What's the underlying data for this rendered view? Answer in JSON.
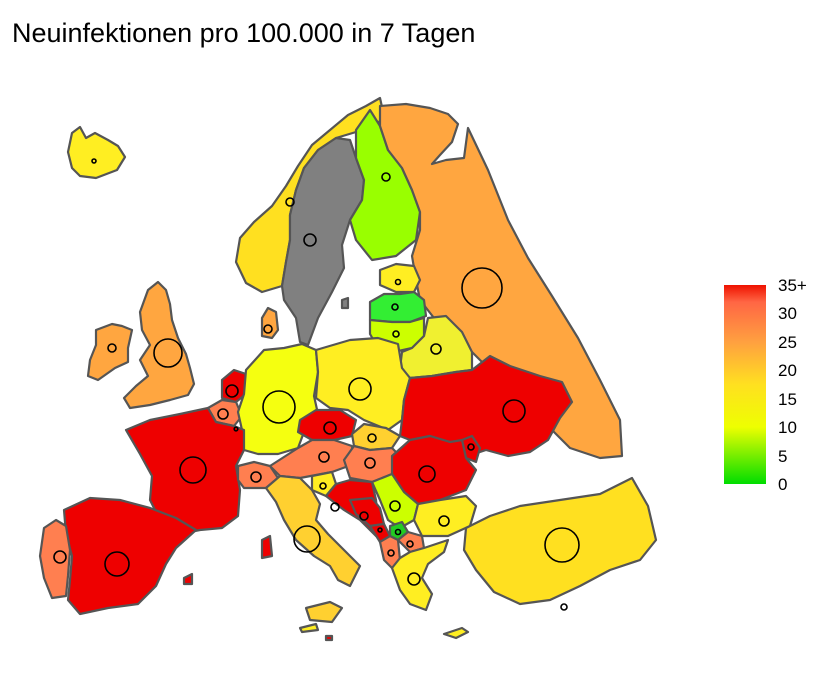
{
  "title": "Neuinfektionen pro 100.000 in 7 Tagen",
  "legend": {
    "min": 0,
    "max": 35,
    "ticks": [
      "35+",
      "30",
      "25",
      "20",
      "15",
      "10",
      "5",
      "0"
    ],
    "tick_values": [
      35,
      30,
      25,
      20,
      15,
      10,
      5,
      0
    ],
    "gradient": [
      {
        "value": 0,
        "color": "#00dd00"
      },
      {
        "value": 10,
        "color": "#eeff00"
      },
      {
        "value": 17.5,
        "color": "#ffe020"
      },
      {
        "value": 25,
        "color": "#ffa040"
      },
      {
        "value": 32,
        "color": "#ff6644"
      },
      {
        "value": 35,
        "color": "#ee1100"
      }
    ]
  },
  "colors": {
    "very_high": "#ee0000",
    "high": "#ff7f50",
    "orange": "#ffa640",
    "yellow_orange": "#ffd030",
    "yellow": "#ffee22",
    "light_yellow": "#f5ff10",
    "yellow_green": "#ccff00",
    "green": "#99ff00",
    "bright_green": "#33ee33",
    "dark_green": "#22cc22",
    "no_data": "#808080"
  }
}
